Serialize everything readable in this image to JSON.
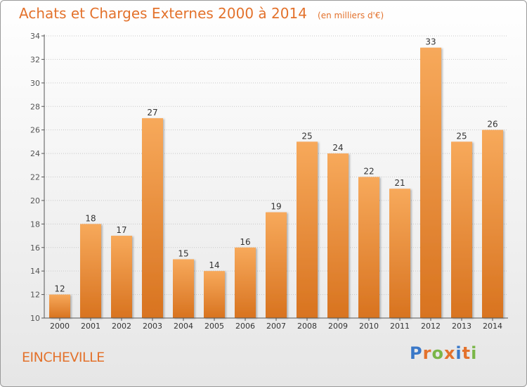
{
  "title": "Achats et Charges Externes 2000 à 2014",
  "unit_label": "(en milliers d'€)",
  "commune": "EINCHEVILLE",
  "logo": {
    "text": "Proxiti",
    "colors": [
      "#3a78c8",
      "#e3722c",
      "#7ab648",
      "#e3722c",
      "#3a78c8",
      "#e3722c",
      "#7ab648"
    ]
  },
  "colors": {
    "title": "#e3722c",
    "bar_top": "#f7a95b",
    "bar_bottom": "#d8731f",
    "value_label": "#333333",
    "axis": "#555555",
    "grid": "#c8c8c8"
  },
  "chart_data": {
    "type": "bar",
    "categories": [
      "2000",
      "2001",
      "2002",
      "2003",
      "2004",
      "2005",
      "2006",
      "2007",
      "2008",
      "2009",
      "2010",
      "2011",
      "2012",
      "2013",
      "2014"
    ],
    "values": [
      12,
      18,
      17,
      27,
      15,
      14,
      16,
      19,
      25,
      24,
      22,
      21,
      33,
      25,
      26
    ],
    "title": "Achats et Charges Externes 2000 à 2014",
    "xlabel": "",
    "ylabel": "",
    "ylim": [
      10,
      34
    ],
    "yticks": [
      10,
      12,
      14,
      16,
      18,
      20,
      22,
      24,
      26,
      28,
      30,
      32,
      34
    ],
    "grid": true,
    "legend": "none"
  }
}
